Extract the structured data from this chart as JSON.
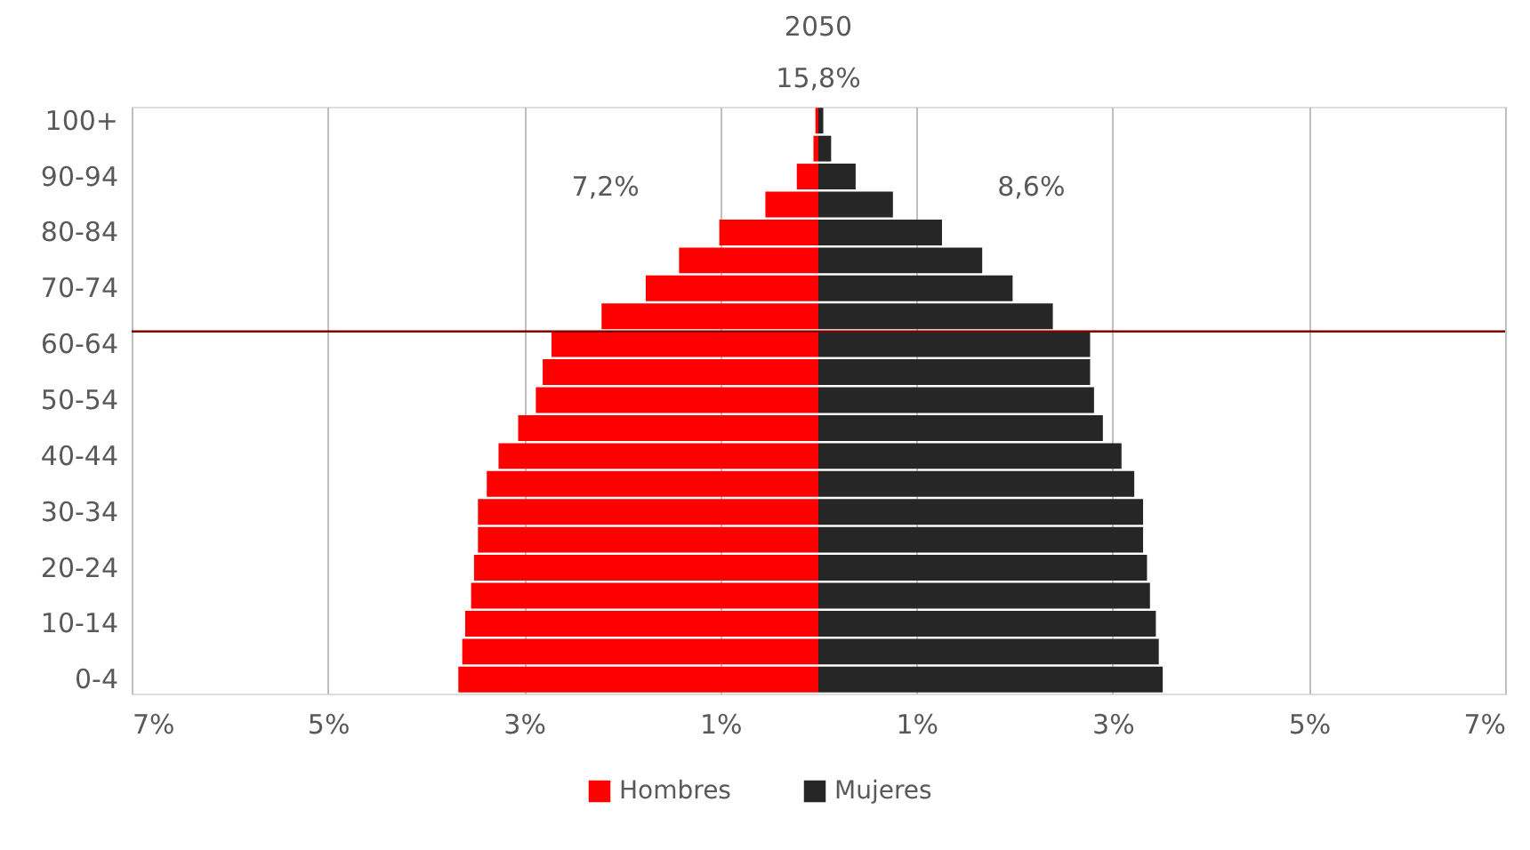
{
  "chart_data": {
    "type": "bar",
    "orientation": "horizontal",
    "stacked": true,
    "title": "2050",
    "subtitle": "15,8%",
    "categories": [
      "100+",
      null,
      "90-94",
      null,
      "80-84",
      null,
      "70-74",
      null,
      "60-64",
      null,
      "50-54",
      null,
      "40-44",
      null,
      "30-34",
      null,
      "20-24",
      null,
      "10-14",
      null,
      "0-4"
    ],
    "series": [
      {
        "name": "Hombres",
        "color": "#ff0000",
        "values": [
          -0.03,
          -0.05,
          -0.22,
          -0.54,
          -1.01,
          -1.42,
          -1.76,
          -2.21,
          -2.72,
          -2.81,
          -2.88,
          -3.06,
          -3.26,
          -3.38,
          -3.47,
          -3.47,
          -3.51,
          -3.54,
          -3.6,
          -3.63,
          -3.67
        ]
      },
      {
        "name": "Mujeres",
        "color": "#262626",
        "values": [
          0.05,
          0.13,
          0.38,
          0.76,
          1.26,
          1.67,
          1.98,
          2.39,
          2.77,
          2.77,
          2.81,
          2.9,
          3.09,
          3.22,
          3.31,
          3.31,
          3.35,
          3.38,
          3.44,
          3.47,
          3.51
        ]
      }
    ],
    "xlim": [
      -7,
      7
    ],
    "xticks": [
      {
        "value": -7,
        "label": "7%"
      },
      {
        "value": -5,
        "label": "5%"
      },
      {
        "value": -3,
        "label": "3%"
      },
      {
        "value": -1,
        "label": "1%"
      },
      {
        "value": 1,
        "label": "1%"
      },
      {
        "value": 3,
        "label": "3%"
      },
      {
        "value": 5,
        "label": "5%"
      },
      {
        "value": 7,
        "label": "7%"
      }
    ],
    "annotations": [
      "7,2%",
      "8,6%"
    ],
    "ref_lines": [
      {
        "axis": "y",
        "value": "60-64",
        "color": "#7f0000"
      }
    ],
    "grid": "x",
    "legend": "bottom"
  }
}
